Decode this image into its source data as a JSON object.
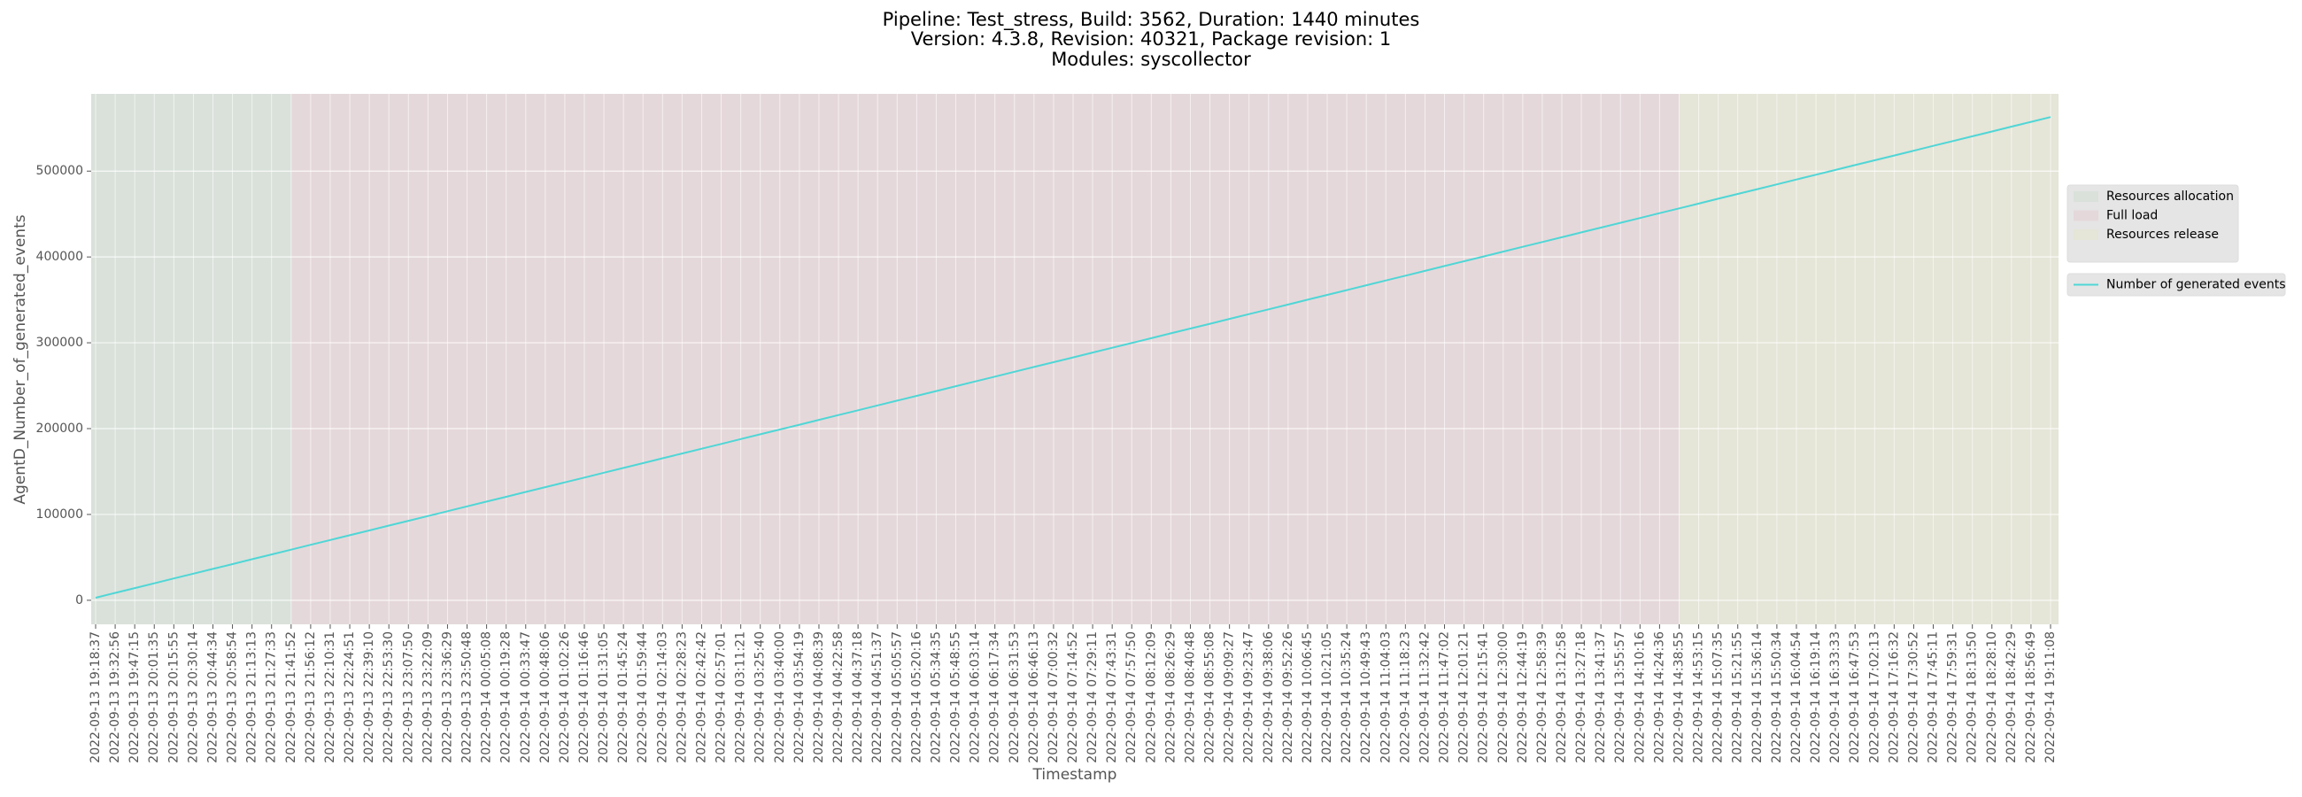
{
  "chart_data": {
    "type": "line",
    "title": [
      "Pipeline: Test_stress, Build: 3562, Duration: 1440 minutes",
      "Version: 4.3.8, Revision: 40321, Package revision: 1",
      "Modules: syscollector"
    ],
    "xlabel": "Timestamp",
    "ylabel": "AgentD_Number_of_generated_events",
    "categories": [
      "2022-09-13 19:18:37",
      "2022-09-13 19:32:56",
      "2022-09-13 19:47:15",
      "2022-09-13 20:01:35",
      "2022-09-13 20:15:55",
      "2022-09-13 20:30:14",
      "2022-09-13 20:44:34",
      "2022-09-13 20:58:54",
      "2022-09-13 21:13:13",
      "2022-09-13 21:27:33",
      "2022-09-13 21:41:52",
      "2022-09-13 21:56:12",
      "2022-09-13 22:10:31",
      "2022-09-13 22:24:51",
      "2022-09-13 22:39:10",
      "2022-09-13 22:53:30",
      "2022-09-13 23:07:50",
      "2022-09-13 23:22:09",
      "2022-09-13 23:36:29",
      "2022-09-13 23:50:48",
      "2022-09-14 00:05:08",
      "2022-09-14 00:19:28",
      "2022-09-14 00:33:47",
      "2022-09-14 00:48:06",
      "2022-09-14 01:02:26",
      "2022-09-14 01:16:46",
      "2022-09-14 01:31:05",
      "2022-09-14 01:45:24",
      "2022-09-14 01:59:44",
      "2022-09-14 02:14:03",
      "2022-09-14 02:28:23",
      "2022-09-14 02:42:42",
      "2022-09-14 02:57:01",
      "2022-09-14 03:11:21",
      "2022-09-14 03:25:40",
      "2022-09-14 03:40:00",
      "2022-09-14 03:54:19",
      "2022-09-14 04:08:39",
      "2022-09-14 04:22:58",
      "2022-09-14 04:37:18",
      "2022-09-14 04:51:37",
      "2022-09-14 05:05:57",
      "2022-09-14 05:20:16",
      "2022-09-14 05:34:35",
      "2022-09-14 05:48:55",
      "2022-09-14 06:03:14",
      "2022-09-14 06:17:34",
      "2022-09-14 06:31:53",
      "2022-09-14 06:46:13",
      "2022-09-14 07:00:32",
      "2022-09-14 07:14:52",
      "2022-09-14 07:29:11",
      "2022-09-14 07:43:31",
      "2022-09-14 07:57:50",
      "2022-09-14 08:12:09",
      "2022-09-14 08:26:29",
      "2022-09-14 08:40:48",
      "2022-09-14 08:55:08",
      "2022-09-14 09:09:27",
      "2022-09-14 09:23:47",
      "2022-09-14 09:38:06",
      "2022-09-14 09:52:26",
      "2022-09-14 10:06:45",
      "2022-09-14 10:21:05",
      "2022-09-14 10:35:24",
      "2022-09-14 10:49:43",
      "2022-09-14 11:04:03",
      "2022-09-14 11:18:23",
      "2022-09-14 11:32:42",
      "2022-09-14 11:47:02",
      "2022-09-14 12:01:21",
      "2022-09-14 12:15:41",
      "2022-09-14 12:30:00",
      "2022-09-14 12:44:19",
      "2022-09-14 12:58:39",
      "2022-09-14 13:12:58",
      "2022-09-14 13:27:18",
      "2022-09-14 13:41:37",
      "2022-09-14 13:55:57",
      "2022-09-14 14:10:16",
      "2022-09-14 14:24:36",
      "2022-09-14 14:38:55",
      "2022-09-14 14:53:15",
      "2022-09-14 15:07:35",
      "2022-09-14 15:21:55",
      "2022-09-14 15:36:14",
      "2022-09-14 15:50:34",
      "2022-09-14 16:04:54",
      "2022-09-14 16:19:14",
      "2022-09-14 16:33:33",
      "2022-09-14 16:47:53",
      "2022-09-14 17:02:13",
      "2022-09-14 17:16:32",
      "2022-09-14 17:30:52",
      "2022-09-14 17:45:11",
      "2022-09-14 17:59:31",
      "2022-09-14 18:13:50",
      "2022-09-14 18:28:10",
      "2022-09-14 18:42:29",
      "2022-09-14 18:56:49",
      "2022-09-14 19:11:08"
    ],
    "series": [
      {
        "name": "Number of generated events",
        "color": "#4fd6d6",
        "values": [
          3000,
          8600,
          14200,
          19800,
          25400,
          31000,
          36600,
          42200,
          47800,
          53400,
          59000,
          64600,
          70200,
          75800,
          81400,
          87000,
          92600,
          98200,
          103800,
          109400,
          115000,
          120600,
          126200,
          131800,
          137400,
          143000,
          148600,
          154200,
          159800,
          165400,
          171000,
          176600,
          182200,
          187800,
          193400,
          199000,
          204600,
          210200,
          215800,
          221400,
          227000,
          232600,
          238200,
          243800,
          249400,
          255000,
          260600,
          266200,
          271800,
          277400,
          283000,
          288600,
          294200,
          299800,
          305400,
          311000,
          316600,
          322200,
          327800,
          333400,
          339000,
          344600,
          350200,
          355800,
          361400,
          367000,
          372600,
          378200,
          383800,
          389400,
          395000,
          400600,
          406200,
          411800,
          417400,
          423000,
          428600,
          434200,
          439800,
          445400,
          451000,
          456600,
          462200,
          467800,
          473400,
          479000,
          484600,
          490200,
          495800,
          501400,
          507000,
          512600,
          518200,
          523800,
          529400,
          535000,
          540600,
          546200,
          551800,
          557400,
          563000
        ]
      }
    ],
    "phases": [
      {
        "name": "Resources allocation",
        "color": "#d9e1da",
        "from": "2022-09-13 19:18:37",
        "to": "2022-09-13 21:41:52"
      },
      {
        "name": "Full load",
        "color": "#e5d8da",
        "from": "2022-09-13 21:41:52",
        "to": "2022-09-14 14:38:55"
      },
      {
        "name": "Resources release",
        "color": "#e5e5d8",
        "from": "2022-09-14 14:38:55",
        "to": "2022-09-14 19:11:08"
      }
    ],
    "ylim": [
      -28000,
      590000
    ],
    "yticks": [
      0,
      100000,
      200000,
      300000,
      400000,
      500000
    ],
    "grid": true,
    "legend": "right"
  }
}
